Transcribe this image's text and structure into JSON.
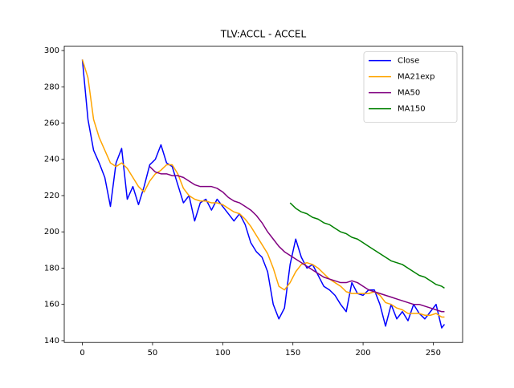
{
  "chart_data": {
    "type": "line",
    "title": "TLV:ACCL - ACCEL",
    "x": [
      0,
      4,
      8,
      12,
      16,
      20,
      24,
      28,
      32,
      36,
      40,
      44,
      48,
      52,
      56,
      60,
      64,
      68,
      72,
      76,
      80,
      84,
      88,
      92,
      96,
      100,
      104,
      108,
      112,
      116,
      120,
      124,
      128,
      132,
      136,
      140,
      144,
      148,
      152,
      156,
      160,
      164,
      168,
      172,
      176,
      180,
      184,
      188,
      192,
      196,
      200,
      204,
      208,
      212,
      216,
      220,
      224,
      228,
      232,
      236,
      240,
      244,
      248,
      252,
      256,
      258
    ],
    "series": [
      {
        "name": "Close",
        "color": "#0000ff",
        "values": [
          295,
          262,
          245,
          238,
          230,
          214,
          238,
          246,
          218,
          225,
          215,
          225,
          237,
          240,
          248,
          238,
          236,
          226,
          216,
          220,
          206,
          216,
          218,
          212,
          218,
          214,
          210,
          206,
          210,
          204,
          194,
          189,
          186,
          178,
          160,
          152,
          158,
          182,
          196,
          186,
          180,
          182,
          176,
          170,
          168,
          165,
          160,
          156,
          172,
          166,
          165,
          168,
          168,
          160,
          148,
          160,
          152,
          156,
          151,
          160,
          155,
          152,
          156,
          160,
          147,
          149
        ]
      },
      {
        "name": "MA21exp",
        "color": "#ffa500",
        "values": [
          295,
          285,
          262,
          252,
          245,
          238,
          236,
          238,
          235,
          230,
          225,
          222,
          228,
          232,
          234,
          237,
          237,
          232,
          224,
          220,
          218,
          217,
          217,
          216,
          216,
          215,
          213,
          211,
          210,
          207,
          203,
          198,
          193,
          188,
          180,
          170,
          168,
          172,
          178,
          182,
          183,
          182,
          180,
          177,
          174,
          172,
          170,
          167,
          166,
          166,
          166,
          166,
          167,
          165,
          161,
          160,
          158,
          157,
          155,
          155,
          155,
          154,
          154,
          155,
          153,
          153
        ]
      },
      {
        "name": "MA50",
        "color": "#800080",
        "values": [
          null,
          null,
          null,
          null,
          null,
          null,
          null,
          null,
          null,
          null,
          null,
          null,
          236,
          233,
          232,
          232,
          231,
          231,
          230,
          228,
          226,
          225,
          225,
          225,
          224,
          222,
          219,
          217,
          216,
          214,
          212,
          209,
          205,
          200,
          196,
          192,
          189,
          187,
          185,
          183,
          181,
          179,
          177,
          175,
          174,
          173,
          172,
          172,
          173,
          172,
          170,
          168,
          167,
          166,
          165,
          164,
          163,
          162,
          161,
          160,
          160,
          159,
          158,
          157,
          156,
          156
        ]
      },
      {
        "name": "MA150",
        "color": "#008000",
        "values": [
          null,
          null,
          null,
          null,
          null,
          null,
          null,
          null,
          null,
          null,
          null,
          null,
          null,
          null,
          null,
          null,
          null,
          null,
          null,
          null,
          null,
          null,
          null,
          null,
          null,
          null,
          null,
          null,
          null,
          null,
          null,
          null,
          null,
          null,
          null,
          null,
          null,
          216,
          213,
          211,
          210,
          208,
          207,
          205,
          204,
          202,
          200,
          199,
          197,
          196,
          194,
          192,
          190,
          188,
          186,
          184,
          183,
          182,
          180,
          178,
          176,
          175,
          173,
          171,
          170,
          169
        ]
      }
    ],
    "xlim": [
      -12.9,
      270.9
    ],
    "xticks": [
      0,
      50,
      100,
      150,
      200,
      250
    ],
    "ylim": [
      139,
      302.4
    ],
    "yticks": [
      140,
      160,
      180,
      200,
      220,
      240,
      260,
      280,
      300
    ],
    "legend": "upper right"
  }
}
